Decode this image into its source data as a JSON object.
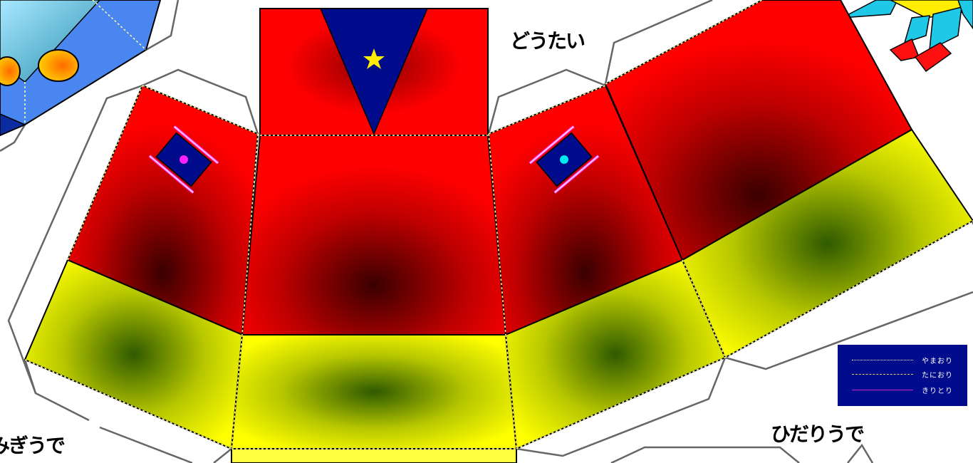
{
  "labels": {
    "body": "どうたい",
    "right_arm": "ひだりうで",
    "left_arm": "みぎうで"
  },
  "legend": {
    "items": [
      {
        "label": "やまおり",
        "style": "dotted",
        "color": "#ffffff"
      },
      {
        "label": "たにおり",
        "style": "dash-dot",
        "color": "#e0d060"
      },
      {
        "label": "きりとり",
        "style": "solid",
        "color": "#cc22cc"
      }
    ]
  },
  "colors": {
    "red_panel": "#ff0000",
    "dark_center": "#3a0000",
    "yellow_band": "#ffff00",
    "green_center": "#2f5a00",
    "navy": "#000c8c",
    "star": "#ffee00",
    "blue_head": "#4a86f0"
  },
  "icons": [
    "star-icon",
    "magenta-dot-icon",
    "cyan-dot-icon"
  ]
}
